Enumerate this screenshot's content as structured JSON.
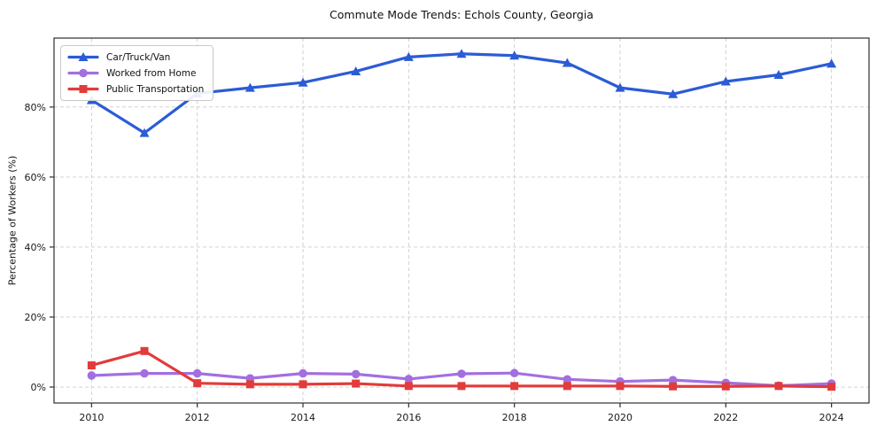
{
  "chart_data": {
    "type": "line",
    "title": "Commute Mode Trends: Echols County, Georgia",
    "xlabel": "",
    "ylabel": "Percentage of Workers (%)",
    "x": [
      2010,
      2011,
      2012,
      2013,
      2014,
      2015,
      2016,
      2017,
      2018,
      2019,
      2020,
      2021,
      2022,
      2023,
      2024
    ],
    "series": [
      {
        "id": "car-truck-van",
        "name": "Car/Truck/Van",
        "color": "#2b5cd6",
        "marker": "triangle",
        "values": [
          82.0,
          72.6,
          83.9,
          85.5,
          87.0,
          90.2,
          94.3,
          95.2,
          94.7,
          92.6,
          85.5,
          83.7,
          87.3,
          89.2,
          92.4
        ]
      },
      {
        "id": "worked-from-home",
        "name": "Worked from Home",
        "color": "#a36fe0",
        "marker": "circle",
        "values": [
          3.3,
          3.9,
          3.9,
          2.5,
          3.9,
          3.7,
          2.3,
          3.8,
          4.0,
          2.2,
          1.6,
          2.0,
          1.2,
          0.4,
          1.0
        ]
      },
      {
        "id": "public-transportation",
        "name": "Public Transportation",
        "color": "#e23b3b",
        "marker": "square",
        "values": [
          6.2,
          10.3,
          1.1,
          0.8,
          0.8,
          1.0,
          0.3,
          0.3,
          0.3,
          0.3,
          0.3,
          0.2,
          0.2,
          0.3,
          0.1
        ]
      }
    ],
    "x_ticks": [
      2010,
      2012,
      2014,
      2016,
      2018,
      2020,
      2022,
      2024
    ],
    "x_tick_labels": [
      "2010",
      "2012",
      "2014",
      "2016",
      "2018",
      "2020",
      "2022",
      "2024"
    ],
    "y_ticks": [
      0,
      20,
      40,
      60,
      80
    ],
    "y_tick_labels": [
      "0%",
      "20%",
      "40%",
      "60%",
      "80%"
    ],
    "xlim": [
      2009.29,
      2024.71
    ],
    "ylim": [
      -4.55,
      99.7
    ],
    "grid": true,
    "grid_color": "#cccccc",
    "axis_color": "#2e2e2e",
    "legend_position": "upper left"
  }
}
